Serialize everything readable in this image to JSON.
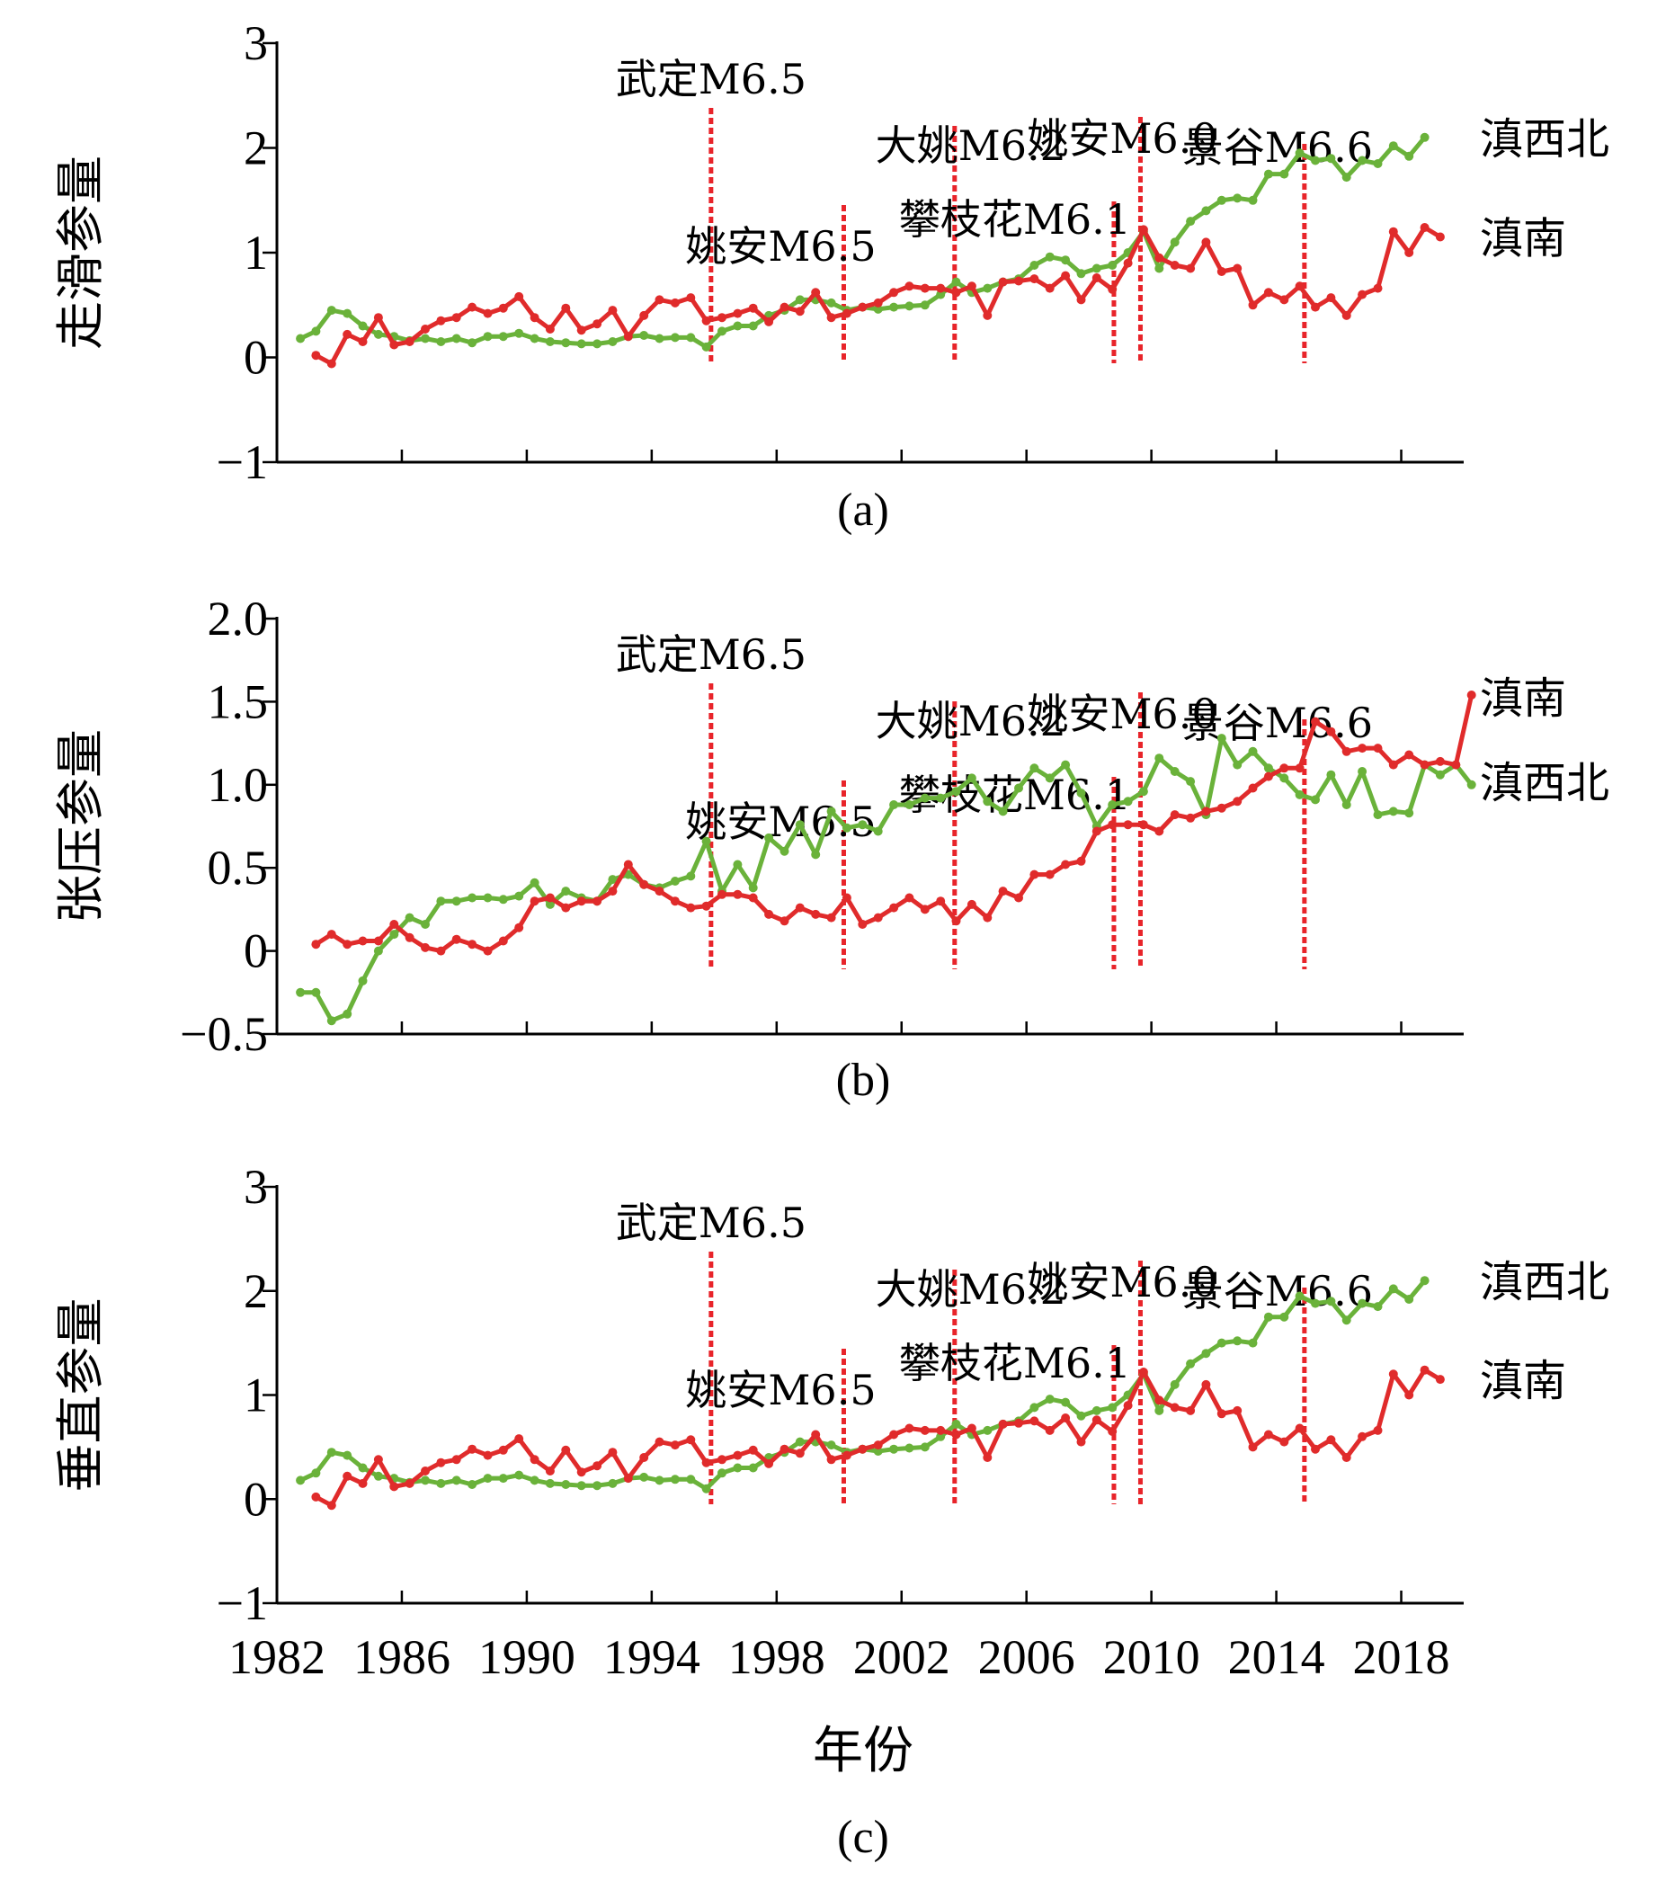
{
  "colors": {
    "dianxibei": "#6ab23a",
    "diannan": "#e02b2b",
    "quake_line": "#e8242a"
  },
  "series_names": {
    "dianxibei": "滇西北",
    "diannan": "滇南"
  },
  "x_axis": {
    "label": "年份",
    "range": [
      1982,
      2020
    ],
    "ticks": [
      1982,
      1986,
      1990,
      1994,
      1998,
      2002,
      2006,
      2010,
      2014,
      2018
    ],
    "start_year": 1982.75,
    "step_years": 0.5
  },
  "earthquakes": [
    {
      "year": 1995.9,
      "label": "武定M6.5"
    },
    {
      "year": 2000.15,
      "label": "姚安M6.5"
    },
    {
      "year": 2003.7,
      "label": "大姚M6.2"
    },
    {
      "year": 2008.8,
      "label": "攀枝花M6.1"
    },
    {
      "year": 2009.65,
      "label": "姚安M6.0"
    },
    {
      "year": 2014.9,
      "label": "景谷M6.6"
    }
  ],
  "chart_data": [
    {
      "type": "line",
      "panel": "(a)",
      "ylabel": "走滑参量",
      "xlabel": "",
      "ylim": [
        -1,
        3
      ],
      "yticks": [
        -1,
        0,
        1,
        2,
        3
      ],
      "ytick_labels": [
        "−1",
        "0",
        "1",
        "2",
        "3"
      ],
      "end_labels": [
        "滇西北",
        "滇南"
      ],
      "series": [
        {
          "name": "滇西北",
          "start_year": 1982.75,
          "values": [
            0.18,
            0.25,
            0.45,
            0.42,
            0.3,
            0.22,
            0.2,
            0.16,
            0.18,
            0.15,
            0.18,
            0.14,
            0.2,
            0.2,
            0.23,
            0.18,
            0.15,
            0.14,
            0.13,
            0.13,
            0.15,
            0.2,
            0.21,
            0.18,
            0.19,
            0.19,
            0.1,
            0.25,
            0.3,
            0.3,
            0.4,
            0.45,
            0.55,
            0.55,
            0.52,
            0.45,
            0.48,
            0.46,
            0.48,
            0.49,
            0.5,
            0.6,
            0.72,
            0.62,
            0.66,
            0.72,
            0.75,
            0.88,
            0.96,
            0.93,
            0.8,
            0.85,
            0.88,
            1.0,
            1.2,
            0.85,
            1.1,
            1.3,
            1.4,
            1.5,
            1.52,
            1.5,
            1.75,
            1.75,
            1.95,
            1.88,
            1.9,
            1.72,
            1.88,
            1.85,
            2.02,
            1.92,
            2.1
          ]
        },
        {
          "name": "滇南",
          "start_year": 1983.25,
          "values": [
            0.02,
            -0.06,
            0.22,
            0.15,
            0.38,
            0.12,
            0.15,
            0.27,
            0.35,
            0.38,
            0.48,
            0.42,
            0.47,
            0.58,
            0.38,
            0.27,
            0.47,
            0.26,
            0.32,
            0.45,
            0.2,
            0.4,
            0.55,
            0.52,
            0.57,
            0.35,
            0.38,
            0.42,
            0.47,
            0.34,
            0.48,
            0.44,
            0.62,
            0.38,
            0.42,
            0.48,
            0.52,
            0.62,
            0.68,
            0.66,
            0.66,
            0.62,
            0.68,
            0.4,
            0.72,
            0.73,
            0.75,
            0.66,
            0.78,
            0.55,
            0.76,
            0.65,
            0.9,
            1.22,
            0.95,
            0.88,
            0.85,
            1.1,
            0.82,
            0.85,
            0.5,
            0.62,
            0.55,
            0.68,
            0.48,
            0.57,
            0.4,
            0.6,
            0.66,
            1.2,
            1.0,
            1.24,
            1.15
          ]
        }
      ]
    },
    {
      "type": "line",
      "panel": "(b)",
      "ylabel": "张压参量",
      "xlabel": "",
      "ylim": [
        -0.5,
        2.0
      ],
      "yticks": [
        -0.5,
        0,
        0.5,
        1.0,
        1.5,
        2.0
      ],
      "ytick_labels": [
        "−0.5",
        "0",
        "0.5",
        "1.0",
        "1.5",
        "2.0"
      ],
      "end_labels": [
        "滇南",
        "滇西北"
      ],
      "series": [
        {
          "name": "滇西北",
          "start_year": 1982.75,
          "values": [
            -0.25,
            -0.25,
            -0.42,
            -0.38,
            -0.18,
            0.0,
            0.1,
            0.2,
            0.16,
            0.3,
            0.3,
            0.32,
            0.32,
            0.31,
            0.33,
            0.41,
            0.28,
            0.36,
            0.32,
            0.3,
            0.43,
            0.46,
            0.4,
            0.38,
            0.42,
            0.45,
            0.66,
            0.36,
            0.52,
            0.38,
            0.68,
            0.6,
            0.76,
            0.58,
            0.84,
            0.74,
            0.76,
            0.72,
            0.88,
            0.88,
            0.92,
            0.92,
            0.96,
            1.04,
            0.9,
            0.84,
            0.98,
            1.1,
            1.04,
            1.12,
            0.95,
            0.75,
            0.88,
            0.9,
            0.96,
            1.16,
            1.08,
            1.02,
            0.82,
            1.28,
            1.12,
            1.2,
            1.1,
            1.04,
            0.94,
            0.91,
            1.06,
            0.88,
            1.08,
            0.82,
            0.84,
            0.83,
            1.12,
            1.06,
            1.12,
            1.0
          ]
        },
        {
          "name": "滇南",
          "start_year": 1983.25,
          "values": [
            0.04,
            0.1,
            0.04,
            0.06,
            0.06,
            0.16,
            0.08,
            0.02,
            0.0,
            0.07,
            0.04,
            0.0,
            0.06,
            0.14,
            0.3,
            0.32,
            0.26,
            0.3,
            0.3,
            0.36,
            0.52,
            0.4,
            0.36,
            0.3,
            0.26,
            0.27,
            0.34,
            0.34,
            0.32,
            0.22,
            0.18,
            0.26,
            0.22,
            0.2,
            0.32,
            0.16,
            0.2,
            0.26,
            0.32,
            0.25,
            0.3,
            0.18,
            0.28,
            0.2,
            0.36,
            0.32,
            0.46,
            0.46,
            0.52,
            0.54,
            0.72,
            0.76,
            0.76,
            0.76,
            0.72,
            0.82,
            0.8,
            0.84,
            0.86,
            0.9,
            0.98,
            1.05,
            1.1,
            1.1,
            1.38,
            1.32,
            1.2,
            1.22,
            1.22,
            1.12,
            1.18,
            1.12,
            1.14,
            1.12,
            1.54
          ]
        }
      ]
    },
    {
      "type": "line",
      "panel": "(c)",
      "ylabel": "垂直参量",
      "xlabel": "年份",
      "ylim": [
        -1,
        3
      ],
      "yticks": [
        -1,
        0,
        1,
        2,
        3
      ],
      "ytick_labels": [
        "−1",
        "0",
        "1",
        "2",
        "3"
      ],
      "end_labels": [
        "滇西北",
        "滇南"
      ],
      "series": [
        {
          "name": "滇西北",
          "start_year": 1982.75,
          "values": [
            0.18,
            0.25,
            0.45,
            0.42,
            0.3,
            0.22,
            0.2,
            0.16,
            0.18,
            0.15,
            0.18,
            0.14,
            0.2,
            0.2,
            0.23,
            0.18,
            0.15,
            0.14,
            0.13,
            0.13,
            0.15,
            0.2,
            0.21,
            0.18,
            0.19,
            0.19,
            0.1,
            0.25,
            0.3,
            0.3,
            0.4,
            0.45,
            0.55,
            0.55,
            0.52,
            0.45,
            0.48,
            0.46,
            0.48,
            0.49,
            0.5,
            0.6,
            0.72,
            0.62,
            0.66,
            0.72,
            0.75,
            0.88,
            0.96,
            0.93,
            0.8,
            0.85,
            0.88,
            1.0,
            1.2,
            0.85,
            1.1,
            1.3,
            1.4,
            1.5,
            1.52,
            1.5,
            1.75,
            1.75,
            1.95,
            1.88,
            1.9,
            1.72,
            1.88,
            1.85,
            2.02,
            1.92,
            2.1
          ]
        },
        {
          "name": "滇南",
          "start_year": 1983.25,
          "values": [
            0.02,
            -0.06,
            0.22,
            0.15,
            0.38,
            0.12,
            0.15,
            0.27,
            0.35,
            0.38,
            0.48,
            0.42,
            0.47,
            0.58,
            0.38,
            0.27,
            0.47,
            0.26,
            0.32,
            0.45,
            0.2,
            0.4,
            0.55,
            0.52,
            0.57,
            0.35,
            0.38,
            0.42,
            0.47,
            0.34,
            0.48,
            0.44,
            0.62,
            0.38,
            0.42,
            0.48,
            0.52,
            0.62,
            0.68,
            0.66,
            0.66,
            0.62,
            0.68,
            0.4,
            0.72,
            0.73,
            0.75,
            0.66,
            0.78,
            0.55,
            0.76,
            0.65,
            0.9,
            1.22,
            0.95,
            0.88,
            0.85,
            1.1,
            0.82,
            0.85,
            0.5,
            0.62,
            0.55,
            0.68,
            0.48,
            0.57,
            0.4,
            0.6,
            0.66,
            1.2,
            1.0,
            1.24,
            1.15
          ]
        }
      ]
    }
  ]
}
